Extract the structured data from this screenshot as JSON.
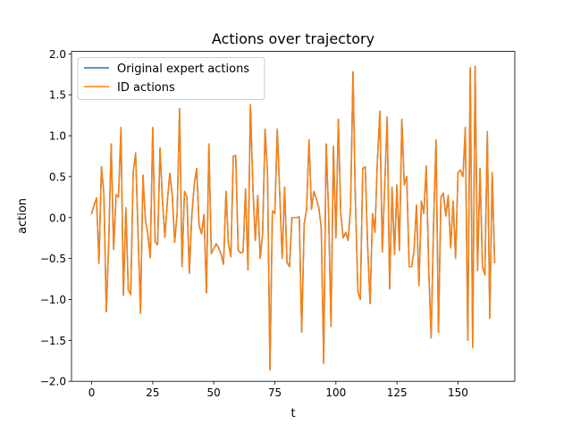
{
  "chart_data": {
    "type": "line",
    "title": "Actions over trajectory",
    "xlabel": "t",
    "ylabel": "action",
    "xlim": [
      -8.25,
      173.25
    ],
    "ylim": [
      -2.0,
      2.03
    ],
    "xticks": [
      0,
      25,
      50,
      75,
      100,
      125,
      150
    ],
    "yticks": [
      -2.0,
      -1.5,
      -1.0,
      -0.5,
      0.0,
      0.5,
      1.0,
      1.5,
      2.0
    ],
    "xtick_labels": [
      "0",
      "25",
      "50",
      "75",
      "100",
      "125",
      "150"
    ],
    "ytick_labels": [
      "−2.0",
      "−1.5",
      "−1.0",
      "−0.5",
      "0.0",
      "0.5",
      "1.0",
      "1.5",
      "2.0"
    ],
    "grid": false,
    "legend_position": "top-left",
    "x": [
      0,
      1,
      2,
      3,
      4,
      5,
      6,
      7,
      8,
      9,
      10,
      11,
      12,
      13,
      14,
      15,
      16,
      17,
      18,
      19,
      20,
      21,
      22,
      23,
      24,
      25,
      26,
      27,
      28,
      29,
      30,
      31,
      32,
      33,
      34,
      35,
      36,
      37,
      38,
      39,
      40,
      41,
      42,
      43,
      44,
      45,
      46,
      47,
      48,
      49,
      50,
      51,
      52,
      53,
      54,
      55,
      56,
      57,
      58,
      59,
      60,
      61,
      62,
      63,
      64,
      65,
      66,
      67,
      68,
      69,
      70,
      71,
      72,
      73,
      74,
      75,
      76,
      77,
      78,
      79,
      80,
      81,
      82,
      83,
      84,
      85,
      86,
      87,
      88,
      89,
      90,
      91,
      92,
      93,
      94,
      95,
      96,
      97,
      98,
      99,
      100,
      101,
      102,
      103,
      104,
      105,
      106,
      107,
      108,
      109,
      110,
      111,
      112,
      113,
      114,
      115,
      116,
      117,
      118,
      119,
      120,
      121,
      122,
      123,
      124,
      125,
      126,
      127,
      128,
      129,
      130,
      131,
      132,
      133,
      134,
      135,
      136,
      137,
      138,
      139,
      140,
      141,
      142,
      143,
      144,
      145,
      146,
      147,
      148,
      149,
      150,
      151,
      152,
      153,
      154,
      155,
      156,
      157,
      158,
      159,
      160,
      161,
      162,
      163,
      164,
      165
    ],
    "series": [
      {
        "name": "Original expert actions",
        "color": "#1f77b4",
        "values": [
          0.05,
          0.15,
          0.24,
          -0.56,
          0.62,
          0.3,
          -1.15,
          -0.3,
          0.9,
          -0.39,
          0.28,
          0.25,
          1.1,
          -0.95,
          0.12,
          -0.88,
          -0.94,
          0.55,
          0.79,
          -0.2,
          -1.17,
          0.52,
          -0.02,
          -0.2,
          -0.49,
          1.1,
          -0.3,
          -0.33,
          0.85,
          0.2,
          -0.24,
          0.2,
          0.54,
          0.27,
          -0.3,
          0.05,
          1.33,
          -0.6,
          0.32,
          0.25,
          -0.68,
          0.02,
          0.4,
          0.6,
          -0.1,
          -0.2,
          0.04,
          -0.92,
          0.9,
          -0.44,
          -0.38,
          -0.32,
          -0.37,
          -0.45,
          -0.57,
          0.32,
          -0.32,
          -0.48,
          0.75,
          0.76,
          -0.4,
          -0.43,
          -0.42,
          0.35,
          -0.64,
          1.38,
          0.38,
          -0.28,
          0.27,
          -0.5,
          -0.2,
          1.08,
          0.55,
          -1.86,
          0.08,
          0.05,
          1.08,
          0.3,
          -0.5,
          0.37,
          -0.55,
          -0.6,
          0.0,
          0.0,
          0.0,
          0.01,
          -1.4,
          -0.08,
          0.1,
          0.95,
          0.1,
          0.32,
          0.23,
          0.12,
          -0.12,
          -1.78,
          0.9,
          0.08,
          -1.33,
          0.87,
          -0.25,
          1.2,
          0.05,
          -0.25,
          -0.18,
          -0.28,
          0.12,
          1.78,
          0.18,
          -0.9,
          -1.0,
          0.6,
          0.62,
          -0.35,
          -1.05,
          0.05,
          -0.18,
          0.7,
          1.3,
          -0.42,
          0.4,
          1.23,
          -0.87,
          0.37,
          -0.45,
          0.4,
          -0.4,
          1.2,
          0.4,
          0.5,
          -0.6,
          -0.6,
          -0.4,
          0.15,
          -0.83,
          0.2,
          0.05,
          0.63,
          -0.63,
          -1.47,
          -0.07,
          0.95,
          -1.4,
          0.25,
          0.3,
          0.02,
          0.27,
          -0.37,
          0.2,
          -0.5,
          0.55,
          0.58,
          0.5,
          1.1,
          -1.5,
          1.83,
          -1.59,
          1.85,
          -0.65,
          0.6,
          -0.6,
          -0.7,
          1.05,
          -1.23,
          0.55,
          -0.55
        ]
      },
      {
        "name": "ID actions",
        "color": "#ff7f0e",
        "values": [
          0.05,
          0.15,
          0.24,
          -0.56,
          0.62,
          0.3,
          -1.15,
          -0.3,
          0.9,
          -0.39,
          0.28,
          0.25,
          1.1,
          -0.95,
          0.12,
          -0.88,
          -0.94,
          0.55,
          0.79,
          -0.2,
          -1.17,
          0.52,
          -0.02,
          -0.2,
          -0.49,
          1.1,
          -0.3,
          -0.33,
          0.85,
          0.2,
          -0.24,
          0.2,
          0.54,
          0.27,
          -0.3,
          0.05,
          1.33,
          -0.6,
          0.32,
          0.25,
          -0.68,
          0.02,
          0.4,
          0.6,
          -0.1,
          -0.2,
          0.04,
          -0.92,
          0.9,
          -0.44,
          -0.38,
          -0.32,
          -0.37,
          -0.45,
          -0.57,
          0.32,
          -0.32,
          -0.48,
          0.75,
          0.76,
          -0.4,
          -0.43,
          -0.42,
          0.35,
          -0.64,
          1.38,
          0.38,
          -0.28,
          0.27,
          -0.5,
          -0.2,
          1.08,
          0.55,
          -1.86,
          0.08,
          0.05,
          1.08,
          0.3,
          -0.5,
          0.37,
          -0.55,
          -0.6,
          0.0,
          0.0,
          0.0,
          0.01,
          -1.4,
          -0.08,
          0.1,
          0.95,
          0.1,
          0.32,
          0.23,
          0.12,
          -0.12,
          -1.78,
          0.9,
          0.08,
          -1.33,
          0.87,
          -0.25,
          1.2,
          0.05,
          -0.25,
          -0.18,
          -0.28,
          0.12,
          1.78,
          0.18,
          -0.9,
          -1.0,
          0.6,
          0.62,
          -0.35,
          -1.05,
          0.05,
          -0.18,
          0.7,
          1.3,
          -0.42,
          0.4,
          1.23,
          -0.87,
          0.37,
          -0.45,
          0.4,
          -0.4,
          1.2,
          0.4,
          0.5,
          -0.6,
          -0.6,
          -0.4,
          0.15,
          -0.83,
          0.2,
          0.05,
          0.63,
          -0.63,
          -1.47,
          -0.07,
          0.95,
          -1.4,
          0.25,
          0.3,
          0.02,
          0.27,
          -0.37,
          0.2,
          -0.5,
          0.55,
          0.58,
          0.5,
          1.1,
          -1.5,
          1.83,
          -1.59,
          1.85,
          -0.65,
          0.6,
          -0.6,
          -0.7,
          1.05,
          -1.23,
          0.55,
          -0.55
        ]
      }
    ]
  }
}
